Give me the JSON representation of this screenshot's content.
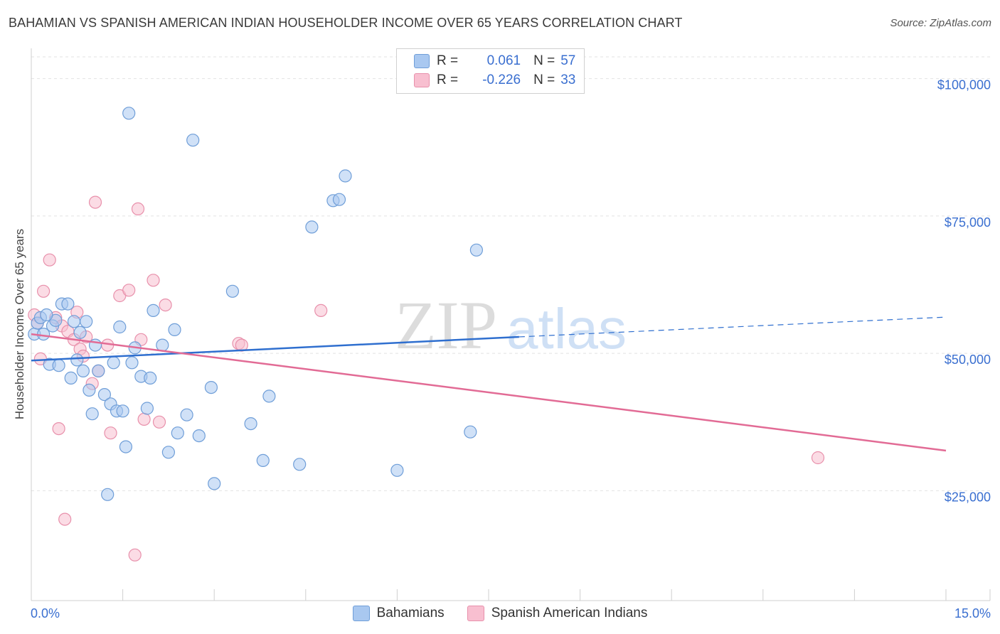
{
  "title": "BAHAMIAN VS SPANISH AMERICAN INDIAN HOUSEHOLDER INCOME OVER 65 YEARS CORRELATION CHART",
  "source": "Source: ZipAtlas.com",
  "watermark": {
    "zip": "ZIP",
    "atlas": "atlas"
  },
  "legend": {
    "r_label": "R =",
    "n_label": "N =",
    "rows": [
      {
        "r": "0.061",
        "n": "57",
        "color": "#a9c8f0",
        "border": "#6f9ed8"
      },
      {
        "r": "-0.226",
        "n": "33",
        "color": "#f8bfd0",
        "border": "#e890ab"
      }
    ]
  },
  "bottom_legend": [
    {
      "label": "Bahamians",
      "color": "#a9c8f0",
      "border": "#6f9ed8"
    },
    {
      "label": "Spanish American Indians",
      "color": "#f8bfd0",
      "border": "#e890ab"
    }
  ],
  "chart_data": {
    "type": "scatter",
    "ylabel": "Householder Income Over 65 years",
    "xlim": [
      0,
      15
    ],
    "ylim": [
      5000,
      105000
    ],
    "x_tick_labels": {
      "left": "0.0%",
      "right": "15.0%"
    },
    "y_ticks": [
      {
        "value": 100000,
        "label": "$100,000"
      },
      {
        "value": 75000,
        "label": "$75,000"
      },
      {
        "value": 50000,
        "label": "$50,000"
      },
      {
        "value": 25000,
        "label": "$25,000"
      }
    ],
    "series": [
      {
        "name": "Bahamians",
        "color": "#a9c8f0",
        "stroke": "#6f9ed8",
        "trend": {
          "x0": 0.0,
          "y0": 48700,
          "x1": 8.0,
          "y1": 53000,
          "dash_to": 15.0,
          "dash_y": 56600,
          "color": "#2f6fcf"
        },
        "points": [
          [
            0.05,
            53500
          ],
          [
            0.1,
            55500
          ],
          [
            0.15,
            56500
          ],
          [
            0.2,
            53500
          ],
          [
            0.3,
            48000
          ],
          [
            0.35,
            55000
          ],
          [
            0.4,
            56000
          ],
          [
            0.45,
            47800
          ],
          [
            0.5,
            59000
          ],
          [
            0.6,
            59000
          ],
          [
            0.65,
            45500
          ],
          [
            0.7,
            55800
          ],
          [
            0.75,
            48800
          ],
          [
            0.8,
            53800
          ],
          [
            0.85,
            46800
          ],
          [
            0.9,
            55800
          ],
          [
            0.95,
            43300
          ],
          [
            1.0,
            39000
          ],
          [
            1.05,
            51500
          ],
          [
            1.1,
            46800
          ],
          [
            1.2,
            42500
          ],
          [
            1.25,
            24300
          ],
          [
            1.3,
            40800
          ],
          [
            1.35,
            48300
          ],
          [
            1.4,
            39500
          ],
          [
            1.45,
            54800
          ],
          [
            1.5,
            39500
          ],
          [
            1.55,
            33000
          ],
          [
            1.6,
            93700
          ],
          [
            1.65,
            48300
          ],
          [
            1.7,
            51000
          ],
          [
            1.8,
            45800
          ],
          [
            1.9,
            40000
          ],
          [
            1.95,
            45500
          ],
          [
            2.0,
            57800
          ],
          [
            2.15,
            51500
          ],
          [
            2.25,
            32000
          ],
          [
            2.35,
            54300
          ],
          [
            2.4,
            35500
          ],
          [
            2.55,
            38800
          ],
          [
            2.65,
            88800
          ],
          [
            2.75,
            35000
          ],
          [
            2.95,
            43800
          ],
          [
            3.0,
            26300
          ],
          [
            3.3,
            61300
          ],
          [
            3.6,
            37200
          ],
          [
            3.8,
            30500
          ],
          [
            3.9,
            42200
          ],
          [
            4.4,
            29800
          ],
          [
            4.6,
            73000
          ],
          [
            4.95,
            77800
          ],
          [
            5.05,
            78000
          ],
          [
            5.15,
            82300
          ],
          [
            6.0,
            28700
          ],
          [
            7.2,
            35700
          ],
          [
            7.3,
            68800
          ],
          [
            0.25,
            57000
          ]
        ]
      },
      {
        "name": "Spanish American Indians",
        "color": "#f8bfd0",
        "stroke": "#e890ab",
        "trend": {
          "x0": 0.0,
          "y0": 53500,
          "x1": 15.0,
          "y1": 32300,
          "color": "#e26b95"
        },
        "points": [
          [
            0.05,
            57000
          ],
          [
            0.15,
            49000
          ],
          [
            0.2,
            61300
          ],
          [
            0.3,
            67000
          ],
          [
            0.4,
            56500
          ],
          [
            0.45,
            36300
          ],
          [
            0.5,
            55000
          ],
          [
            0.55,
            19800
          ],
          [
            0.6,
            54000
          ],
          [
            0.7,
            52500
          ],
          [
            0.75,
            57500
          ],
          [
            0.8,
            50800
          ],
          [
            0.85,
            49500
          ],
          [
            0.9,
            53000
          ],
          [
            1.0,
            44500
          ],
          [
            1.05,
            77500
          ],
          [
            1.1,
            46800
          ],
          [
            1.25,
            51500
          ],
          [
            1.3,
            35500
          ],
          [
            1.45,
            60500
          ],
          [
            1.6,
            61500
          ],
          [
            1.7,
            13300
          ],
          [
            1.75,
            76300
          ],
          [
            1.8,
            52500
          ],
          [
            1.85,
            38000
          ],
          [
            2.0,
            63300
          ],
          [
            2.1,
            37500
          ],
          [
            2.2,
            58800
          ],
          [
            3.4,
            51800
          ],
          [
            3.45,
            51500
          ],
          [
            4.75,
            57800
          ],
          [
            12.9,
            31000
          ],
          [
            0.1,
            55500
          ]
        ]
      }
    ]
  }
}
